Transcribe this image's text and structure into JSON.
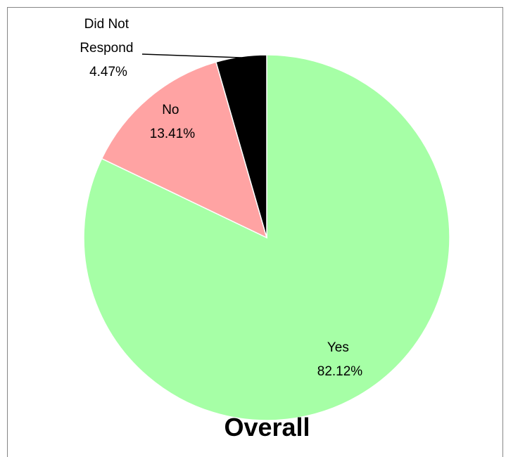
{
  "chart_data": {
    "type": "pie",
    "title": "Overall",
    "slices": [
      {
        "name": "Yes",
        "value": 82.12,
        "label": "82.12%",
        "color": "#A6FFA6"
      },
      {
        "name": "No",
        "value": 13.41,
        "label": "13.41%",
        "color": "#FFA3A3"
      },
      {
        "name": "Did Not Respond",
        "value": 4.47,
        "label": "4.47%",
        "color": "#000000"
      }
    ],
    "legend": "none",
    "start_angle": "12 o'clock",
    "direction": "clockwise"
  }
}
